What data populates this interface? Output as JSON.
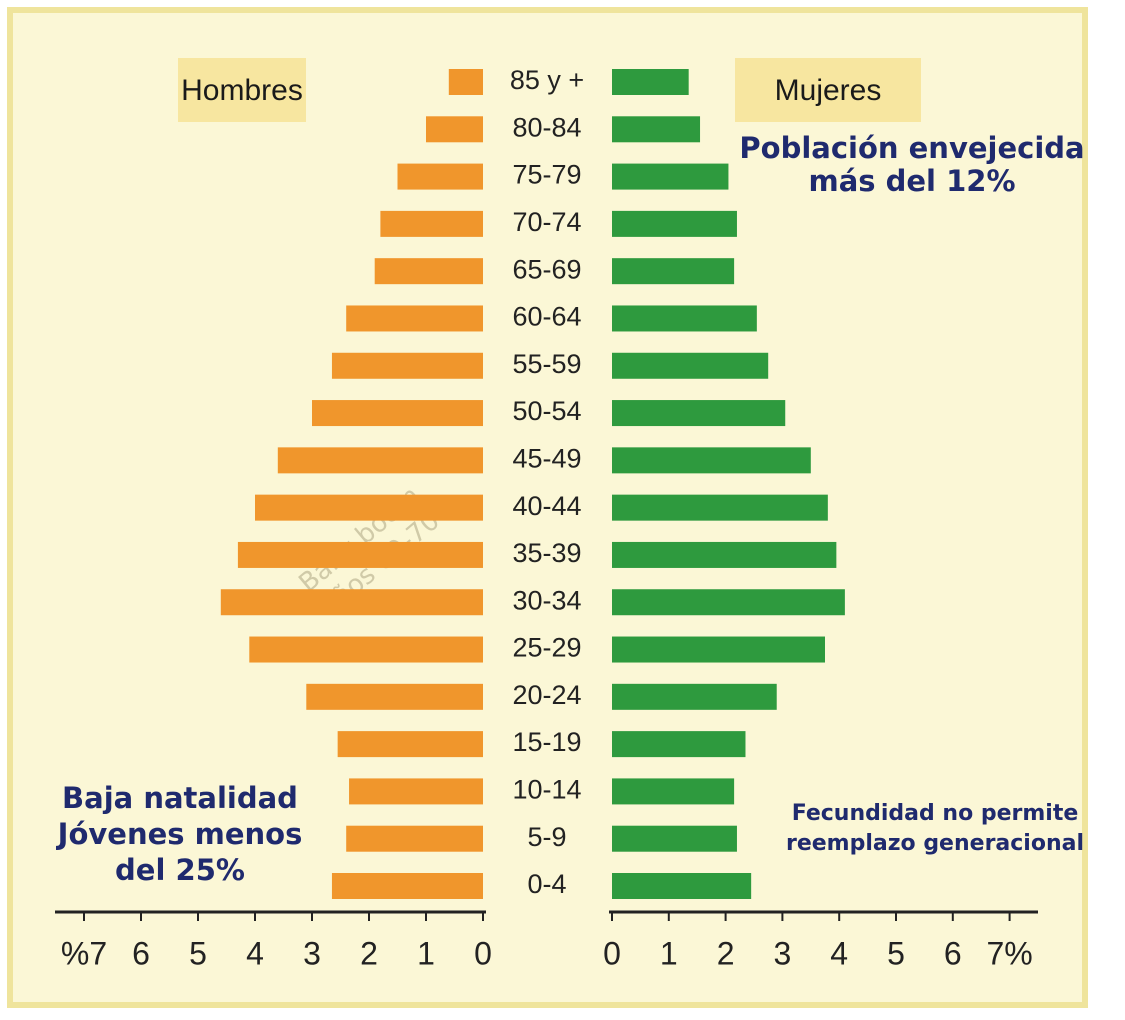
{
  "chart_data": {
    "type": "pyramid",
    "categories": [
      "85 y +",
      "80-84",
      "75-79",
      "70-74",
      "65-69",
      "60-64",
      "55-59",
      "50-54",
      "45-49",
      "40-44",
      "35-39",
      "30-34",
      "25-29",
      "20-24",
      "15-19",
      "10-14",
      "5-9",
      "0-4"
    ],
    "series": [
      {
        "name": "Hombres",
        "color": "#f0962c",
        "side": "left",
        "values": [
          0.6,
          1.0,
          1.5,
          1.8,
          1.9,
          2.4,
          2.65,
          3.0,
          3.6,
          4.0,
          4.3,
          4.6,
          4.1,
          3.1,
          2.55,
          2.35,
          2.4,
          2.65
        ],
        "xlim": [
          0,
          7
        ],
        "xticks": [
          {
            "value": 7,
            "label": "%7"
          },
          6,
          5,
          4,
          3,
          2,
          1,
          0
        ]
      },
      {
        "name": "Mujeres",
        "color": "#2e9a3e",
        "side": "right",
        "values": [
          1.35,
          1.55,
          2.05,
          2.2,
          2.15,
          2.55,
          2.75,
          3.05,
          3.5,
          3.8,
          3.95,
          4.1,
          3.75,
          2.9,
          2.35,
          2.15,
          2.2,
          2.45
        ],
        "xlim": [
          0,
          7
        ],
        "xticks": [
          0,
          1,
          2,
          3,
          4,
          5,
          6,
          {
            "value": 7,
            "label": "7%"
          }
        ]
      }
    ],
    "annotations": [
      [
        "Población envejecida",
        "más  del 12%"
      ],
      [
        "Baja natalidad",
        "Jóvenes menos",
        "del 25%"
      ],
      [
        "Fecundidad no permite",
        "reemplazo generacional"
      ]
    ],
    "watermark": [
      "Baby boom",
      "años 60-70"
    ]
  }
}
